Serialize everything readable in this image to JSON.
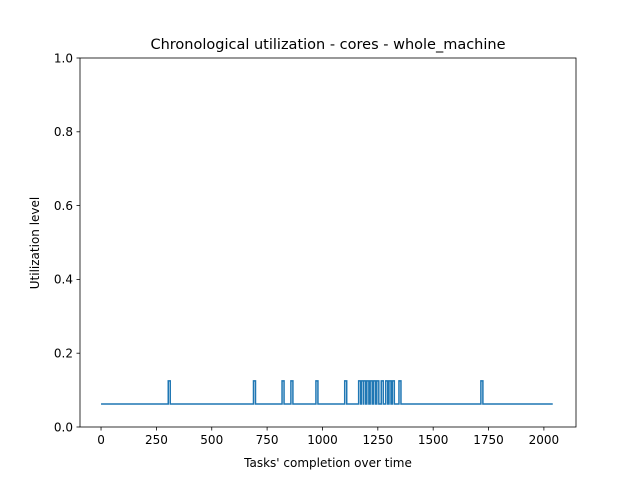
{
  "chart_data": {
    "type": "line",
    "title": "Chronological utilization - cores - whole_machine",
    "xlabel": "Tasks' completion over time",
    "ylabel": "Utilization level",
    "xlim": [
      -95,
      2145
    ],
    "ylim": [
      0,
      1.0
    ],
    "xticks": [
      0,
      250,
      500,
      750,
      1000,
      1250,
      1500,
      1750,
      2000
    ],
    "xtick_labels": [
      "0",
      "250",
      "500",
      "750",
      "1000",
      "1250",
      "1500",
      "1750",
      "2000"
    ],
    "yticks": [
      0.0,
      0.2,
      0.4,
      0.6,
      0.8,
      1.0
    ],
    "ytick_labels": [
      "0.0",
      "0.2",
      "0.4",
      "0.6",
      "0.8",
      "1.0"
    ],
    "grid": false,
    "series": [
      {
        "color": "#1f77b4",
        "x_range": [
          0,
          2040
        ],
        "baseline": 0.0625,
        "peak": 0.125,
        "spike_x": [
          308,
          693,
          822,
          862,
          975,
          1105,
          1168,
          1180,
          1190,
          1205,
          1220,
          1235,
          1250,
          1270,
          1290,
          1305,
          1320,
          1350,
          1720
        ]
      }
    ]
  }
}
